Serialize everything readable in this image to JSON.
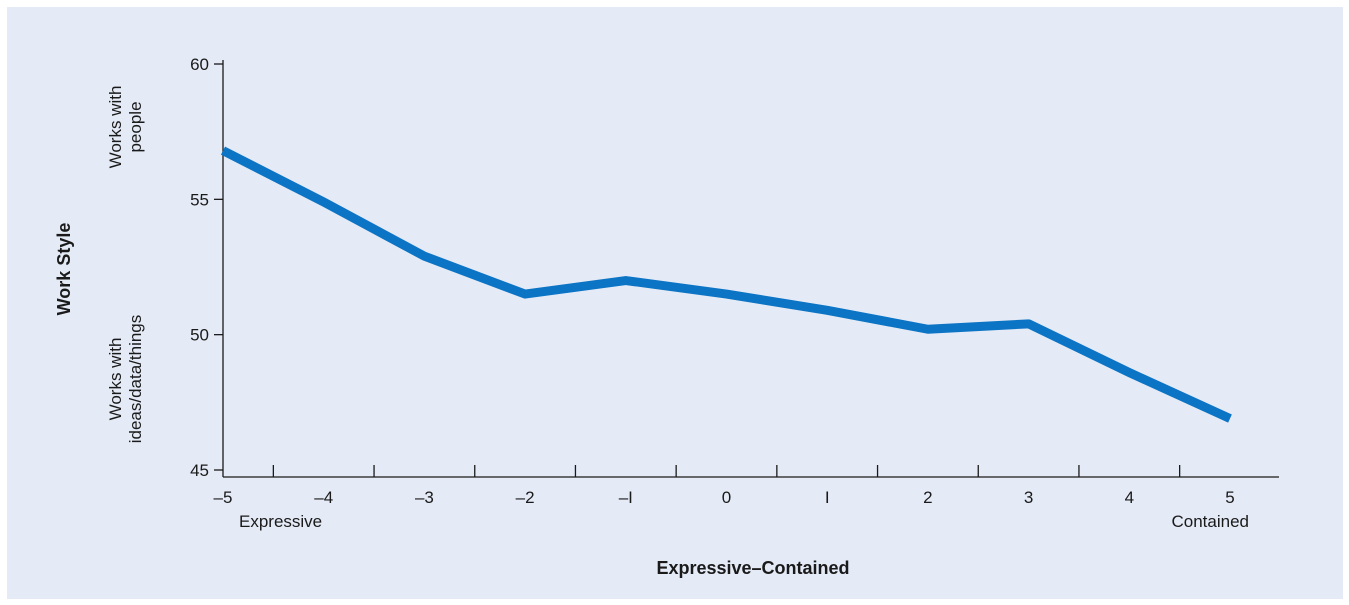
{
  "chart_data": {
    "type": "line",
    "xlabel": "Expressive–Contained",
    "ylabel": "Work Style",
    "x": [
      -5,
      -4,
      -3,
      -2,
      -1,
      0,
      1,
      2,
      3,
      4,
      5
    ],
    "x_tick_labels": [
      "–5",
      "–4",
      "–3",
      "–2",
      "–I",
      "0",
      "I",
      "2",
      "3",
      "4",
      "5"
    ],
    "x_end_labels": {
      "left": "Expressive",
      "right": "Contained"
    },
    "y_tick_values": [
      45,
      50,
      55,
      60
    ],
    "y_tick_labels": [
      "45",
      "50",
      "55",
      "60"
    ],
    "y_side_labels": {
      "top": "Works with people",
      "bottom": "Works with ideas/data/things"
    },
    "xlim": [
      -5,
      5
    ],
    "ylim": [
      45,
      60
    ],
    "grid": false,
    "series": [
      {
        "values": [
          56.8,
          54.9,
          52.9,
          51.5,
          52.0,
          51.5,
          50.9,
          50.2,
          50.4,
          48.6,
          46.9
        ]
      }
    ],
    "colors": {
      "line": "#0c74c4",
      "background": "#e4eaf6",
      "axis": "#1a1a1a"
    }
  }
}
